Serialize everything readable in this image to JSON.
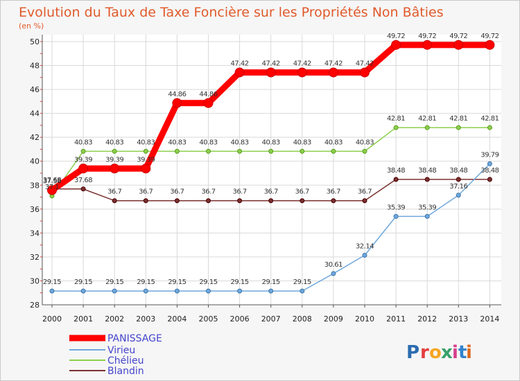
{
  "chart_data": {
    "type": "line",
    "title": "Evolution du Taux de Taxe Foncière sur les Propriétés Non Bâties",
    "ylabel": "(en %)",
    "xlabel": "",
    "x": [
      "2000",
      "2001",
      "2002",
      "2003",
      "2004",
      "2005",
      "2006",
      "2007",
      "2008",
      "2009",
      "2010",
      "2011",
      "2012",
      "2013",
      "2014"
    ],
    "ylim": [
      28,
      50
    ],
    "yticks": [
      "28",
      "30",
      "32",
      "34",
      "36",
      "38",
      "40",
      "42",
      "44",
      "46",
      "48",
      "50"
    ],
    "grid": true,
    "legend_position": "bottom-left",
    "series": [
      {
        "name": "PANISSAGE",
        "color": "#ff0000",
        "labels": [
          "37.58",
          "39.39",
          "39.39",
          "39.39",
          "44.86",
          "44.86",
          "47.42",
          "47.42",
          "47.42",
          "47.42",
          "47.42",
          "49.72",
          "49.72",
          "49.72",
          "49.72"
        ],
        "values": [
          37.58,
          39.39,
          39.39,
          39.39,
          44.86,
          44.86,
          47.42,
          47.42,
          47.42,
          47.42,
          47.42,
          49.72,
          49.72,
          49.72,
          49.72
        ]
      },
      {
        "name": "Virieu",
        "color": "#6fa8dc",
        "labels": [
          "29.15",
          "29.15",
          "29.15",
          "29.15",
          "29.15",
          "29.15",
          "29.15",
          "29.15",
          "29.15",
          "30.61",
          "32.14",
          "35.39",
          "35.39",
          "37.16",
          "39.79"
        ],
        "values": [
          29.15,
          29.15,
          29.15,
          29.15,
          29.15,
          29.15,
          29.15,
          29.15,
          29.15,
          30.61,
          32.14,
          35.39,
          35.39,
          37.16,
          39.79
        ]
      },
      {
        "name": "Chélieu",
        "color": "#8ccf4d",
        "labels": [
          "37.1",
          "40.83",
          "40.83",
          "40.83",
          "40.83",
          "40.83",
          "40.83",
          "40.83",
          "40.83",
          "40.83",
          "40.83",
          "42.81",
          "42.81",
          "42.81",
          "42.81"
        ],
        "values": [
          37.1,
          40.83,
          40.83,
          40.83,
          40.83,
          40.83,
          40.83,
          40.83,
          40.83,
          40.83,
          40.83,
          42.81,
          42.81,
          42.81,
          42.81
        ]
      },
      {
        "name": "Blandin",
        "color": "#7b3030",
        "labels": [
          "37.68",
          "37.68",
          "36.7",
          "36.7",
          "36.7",
          "36.7",
          "36.7",
          "36.7",
          "36.7",
          "36.7",
          "36.7",
          "38.48",
          "38.48",
          "38.48",
          "38.48"
        ],
        "values": [
          37.68,
          37.68,
          36.7,
          36.7,
          36.7,
          36.7,
          36.7,
          36.7,
          36.7,
          36.7,
          36.7,
          38.48,
          38.48,
          38.48,
          38.48
        ]
      }
    ]
  },
  "logo": {
    "text": "Proxiti",
    "letters": [
      "P",
      "r",
      "o",
      "x",
      "i",
      "t",
      "i"
    ],
    "colors": [
      "#2b6cb0",
      "#e53e3e",
      "#f6a623",
      "#38a169",
      "#d53f8c",
      "#3182ce",
      "#dd6b20"
    ]
  }
}
